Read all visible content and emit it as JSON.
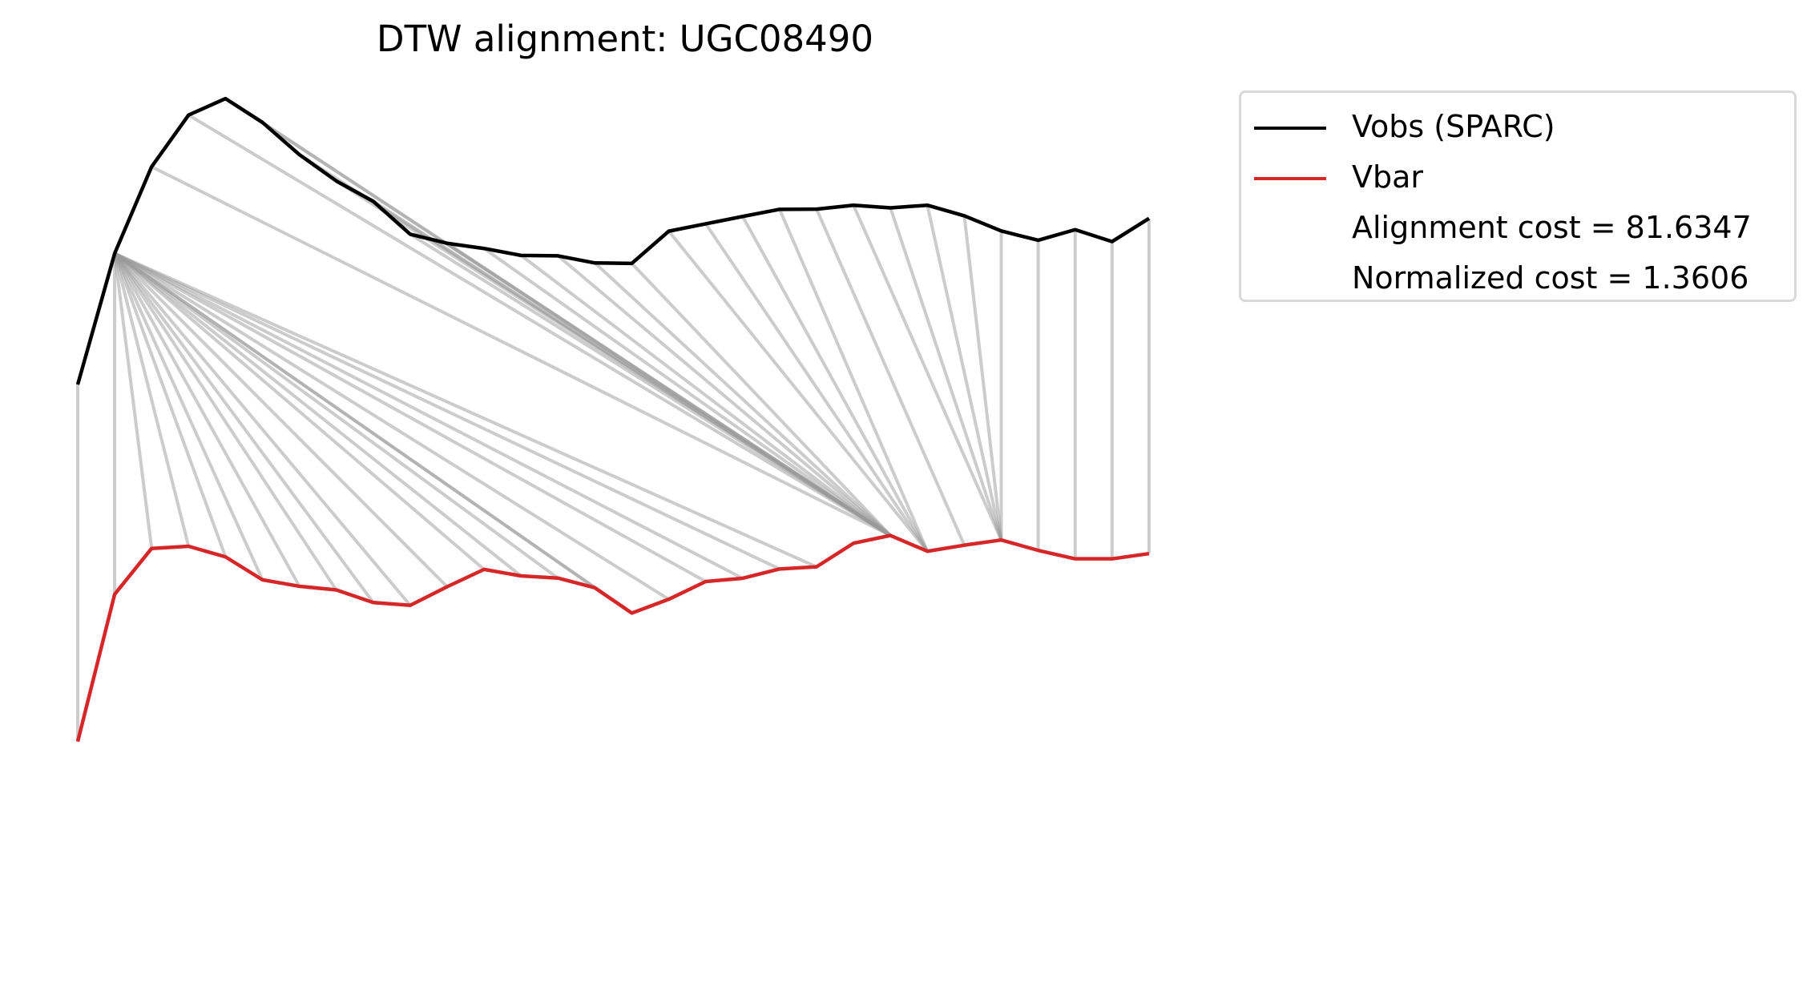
{
  "chart_data": {
    "type": "line",
    "title": "DTW alignment: UGC08490",
    "xlabel": "",
    "ylabel": "",
    "grid": false,
    "axes_visible": false,
    "legend_position": "upper right, outside plot",
    "colors": {
      "vobs": "#000000",
      "vbar": "#d62728",
      "alignment": "#999999"
    },
    "series": [
      {
        "name": "Vobs (SPARC)",
        "values": [
          58.5,
          119.1,
          159.2,
          183.1,
          190.7,
          179.7,
          164.8,
          152.6,
          143.2,
          128.0,
          123.8,
          121.4,
          118.2,
          118.0,
          114.7,
          114.5,
          129.4,
          132.8,
          136.2,
          139.5,
          139.6,
          141.4,
          140.2,
          141.4,
          136.5,
          129.5,
          125.2,
          130.1,
          124.6,
          135.3
        ]
      },
      {
        "name": "Vbar",
        "values": [
          -106.6,
          -38.5,
          -17.3,
          -16.3,
          -21.2,
          -31.8,
          -34.8,
          -36.5,
          -42.3,
          -43.6,
          -35.0,
          -27.0,
          -30.0,
          -31.0,
          -35.5,
          -47.2,
          -40.8,
          -32.6,
          -31.1,
          -26.8,
          -25.8,
          -14.9,
          -11.3,
          -18.6,
          -15.8,
          -13.4,
          -18.2,
          -22.1,
          -22.1,
          -19.7
        ]
      }
    ],
    "alignment_path": [
      [
        0,
        0
      ],
      [
        1,
        1
      ],
      [
        1,
        2
      ],
      [
        1,
        3
      ],
      [
        1,
        4
      ],
      [
        1,
        5
      ],
      [
        1,
        6
      ],
      [
        1,
        7
      ],
      [
        1,
        8
      ],
      [
        1,
        9
      ],
      [
        1,
        10
      ],
      [
        1,
        11
      ],
      [
        1,
        12
      ],
      [
        1,
        13
      ],
      [
        1,
        14
      ],
      [
        1,
        15
      ],
      [
        1,
        16
      ],
      [
        1,
        17
      ],
      [
        1,
        18
      ],
      [
        1,
        19
      ],
      [
        1,
        20
      ],
      [
        2,
        22
      ],
      [
        3,
        22
      ],
      [
        4,
        22
      ],
      [
        5,
        22
      ],
      [
        6,
        22
      ],
      [
        7,
        22
      ],
      [
        8,
        22
      ],
      [
        9,
        22
      ],
      [
        10,
        22
      ],
      [
        11,
        22
      ],
      [
        12,
        22
      ],
      [
        13,
        22
      ],
      [
        14,
        22
      ],
      [
        15,
        22
      ],
      [
        16,
        23
      ],
      [
        17,
        23
      ],
      [
        18,
        23
      ],
      [
        19,
        23
      ],
      [
        20,
        24
      ],
      [
        21,
        25
      ],
      [
        22,
        25
      ],
      [
        23,
        25
      ],
      [
        24,
        25
      ],
      [
        25,
        25
      ],
      [
        26,
        26
      ],
      [
        27,
        27
      ],
      [
        28,
        28
      ],
      [
        29,
        29
      ]
    ],
    "annotations": [
      "Alignment cost = 81.6347",
      "Normalized cost = 1.3606"
    ]
  }
}
